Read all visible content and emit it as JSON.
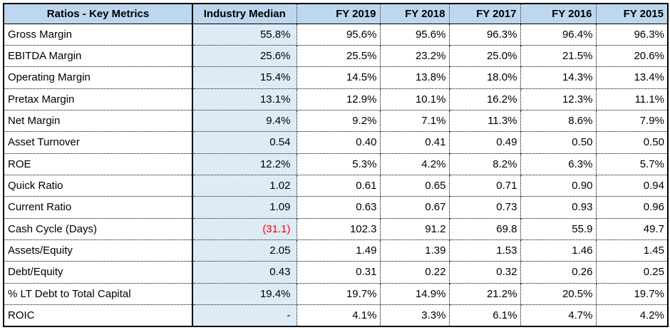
{
  "table": {
    "headers": [
      "Ratios - Key Metrics",
      "Industry Median",
      "FY 2019",
      "FY 2018",
      "FY 2017",
      "FY 2016",
      "FY 2015"
    ],
    "rows": [
      {
        "metric": "Gross Margin",
        "median": "55.8%",
        "values": [
          "95.6%",
          "95.6%",
          "96.3%",
          "96.4%",
          "96.3%"
        ]
      },
      {
        "metric": "EBITDA Margin",
        "median": "25.6%",
        "values": [
          "25.5%",
          "23.2%",
          "25.0%",
          "21.5%",
          "20.6%"
        ]
      },
      {
        "metric": "Operating Margin",
        "median": "15.4%",
        "values": [
          "14.5%",
          "13.8%",
          "18.0%",
          "14.3%",
          "13.4%"
        ]
      },
      {
        "metric": "Pretax Margin",
        "median": "13.1%",
        "values": [
          "12.9%",
          "10.1%",
          "16.2%",
          "12.3%",
          "11.1%"
        ]
      },
      {
        "metric": "Net Margin",
        "median": "9.4%",
        "values": [
          "9.2%",
          "7.1%",
          "11.3%",
          "8.6%",
          "7.9%"
        ]
      },
      {
        "metric": "Asset Turnover",
        "median": "0.54",
        "values": [
          "0.40",
          "0.41",
          "0.49",
          "0.50",
          "0.50"
        ]
      },
      {
        "metric": "ROE",
        "median": "12.2%",
        "values": [
          "5.3%",
          "4.2%",
          "8.2%",
          "6.3%",
          "5.7%"
        ]
      },
      {
        "metric": "Quick Ratio",
        "median": "1.02",
        "values": [
          "0.61",
          "0.65",
          "0.71",
          "0.90",
          "0.94"
        ]
      },
      {
        "metric": "Current Ratio",
        "median": "1.09",
        "values": [
          "0.63",
          "0.67",
          "0.73",
          "0.93",
          "0.96"
        ]
      },
      {
        "metric": "Cash Cycle (Days)",
        "median": "(31.1)",
        "median_negative": true,
        "values": [
          "102.3",
          "91.2",
          "69.8",
          "55.9",
          "49.7"
        ]
      },
      {
        "metric": "Assets/Equity",
        "median": "2.05",
        "values": [
          "1.49",
          "1.39",
          "1.53",
          "1.46",
          "1.45"
        ]
      },
      {
        "metric": "Debt/Equity",
        "median": "0.43",
        "values": [
          "0.31",
          "0.22",
          "0.32",
          "0.26",
          "0.25"
        ]
      },
      {
        "metric": "% LT Debt to Total Capital",
        "median": "19.4%",
        "values": [
          "19.7%",
          "14.9%",
          "21.2%",
          "20.5%",
          "19.7%"
        ]
      },
      {
        "metric": "ROIC",
        "median": "-",
        "values": [
          "4.1%",
          "3.3%",
          "6.1%",
          "4.7%",
          "4.2%"
        ]
      }
    ]
  },
  "colors": {
    "header_bg": "#bdd7ee",
    "median_bg": "#ddebf7",
    "negative": "#ff0000"
  }
}
